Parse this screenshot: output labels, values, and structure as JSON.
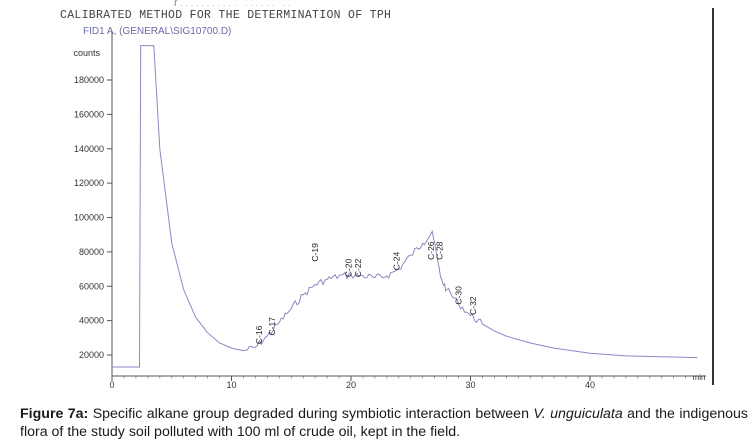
{
  "header": {
    "cut_line": "[...........  ......    ..",
    "method_title": "CALIBRATED METHOD FOR THE DETERMINATION OF TPH",
    "trace_id": "FID1 A, (GENERAL\\SIG10700.D)"
  },
  "chart_data": {
    "type": "line",
    "ylabel": "counts",
    "xlabel": "min",
    "yticks": [
      20000,
      40000,
      60000,
      80000,
      100000,
      120000,
      140000,
      160000,
      180000
    ],
    "xticks": [
      0,
      10,
      20,
      30,
      40
    ],
    "ylim": [
      10000,
      200000
    ],
    "xlim": [
      0,
      49
    ],
    "grid": false,
    "series": [
      {
        "x": [
          0,
          2.3,
          2.4,
          2.6,
          3.5,
          4,
          5,
          6,
          7,
          8,
          9,
          10,
          11,
          12,
          13,
          14,
          15,
          16,
          17,
          18,
          19,
          20,
          21,
          22,
          23,
          24,
          25,
          26,
          26.8,
          27.5,
          28,
          29,
          30,
          31,
          32,
          33,
          35,
          37,
          40,
          43,
          46,
          49
        ],
        "y": [
          13000,
          13000,
          200000,
          200000,
          200000,
          140000,
          85000,
          58000,
          42000,
          33000,
          27000,
          24000,
          22500,
          24500,
          31000,
          39000,
          47000,
          55000,
          61000,
          64000,
          66000,
          66500,
          66000,
          65000,
          66000,
          70000,
          78000,
          85000,
          92000,
          65000,
          58000,
          50000,
          43000,
          38000,
          34000,
          31000,
          27000,
          24000,
          21000,
          19500,
          19000,
          18500
        ]
      }
    ],
    "peaks": [
      {
        "label": "C-16",
        "x": 12.3,
        "y": 24000
      },
      {
        "label": "C-17",
        "x": 13.4,
        "y": 29000
      },
      {
        "label": "C-19",
        "x": 17.0,
        "y": 72000
      },
      {
        "label": "C-20",
        "x": 19.8,
        "y": 63000
      },
      {
        "label": "C-22",
        "x": 20.6,
        "y": 63000
      },
      {
        "label": "C-24",
        "x": 23.8,
        "y": 67000
      },
      {
        "label": "C-26",
        "x": 26.7,
        "y": 73000
      },
      {
        "label": "C-28",
        "x": 27.4,
        "y": 73000
      },
      {
        "label": "C-30",
        "x": 29.0,
        "y": 47000
      },
      {
        "label": "C-32",
        "x": 30.2,
        "y": 41000
      }
    ]
  },
  "caption": {
    "fig_label": "Figure 7a:",
    "text_1": " Specific alkane group degraded during symbiotic interaction between ",
    "species": "V. unguiculata",
    "text_2": " and the indigenous flora of the study soil polluted with 100 ml of crude oil, kept in the field."
  }
}
